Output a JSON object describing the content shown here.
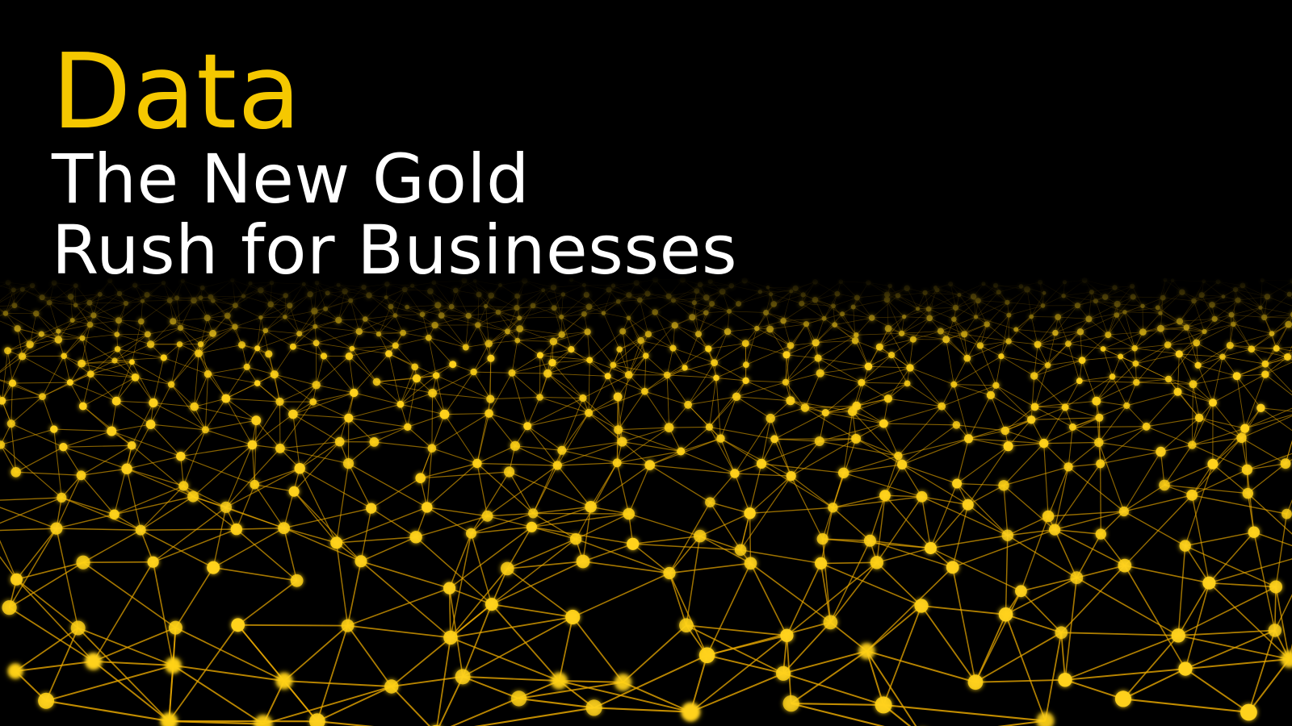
{
  "hero": {
    "title": "Data",
    "subtitle_line1": "The New Gold",
    "subtitle_line2": "Rush for Businesses"
  },
  "colors": {
    "background": "#000000",
    "title": "#f5c800",
    "subtitle": "#ffffff",
    "node": "#ffd21a",
    "link": "#e8a800"
  },
  "background_graphic": {
    "icon": "golden-network-mesh-icon"
  }
}
